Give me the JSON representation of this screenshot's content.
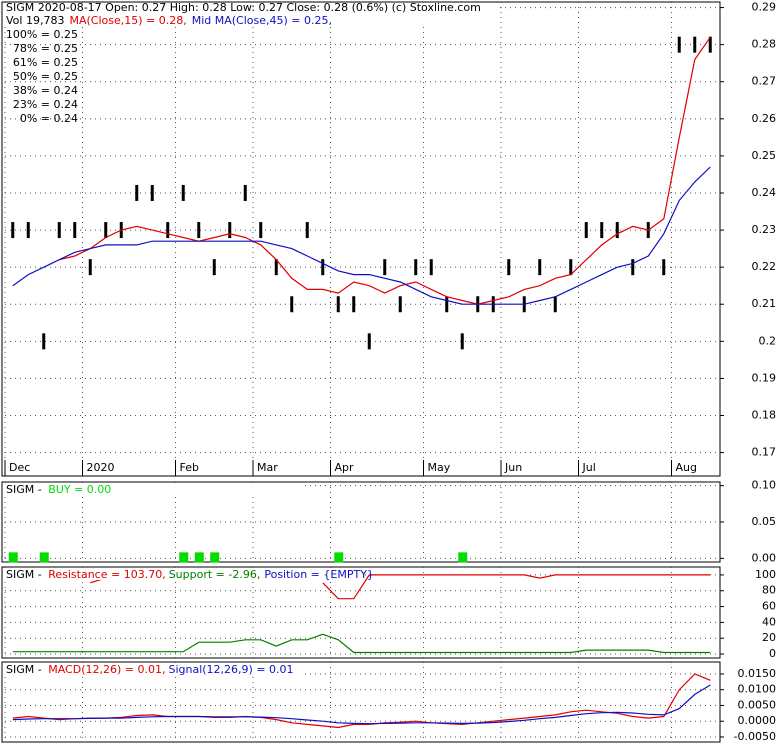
{
  "chart_data": [
    {
      "type": "ohlc",
      "title": "SIGM  2020-08-17 Open: 0.27  High: 0.28  Low: 0.27  Close: 0.28 (0.6%)  (c) Stoxline.com",
      "volume_label": "Vol 19,783",
      "categories": [
        "Dec",
        null,
        null,
        null,
        null,
        "2020",
        null,
        null,
        null,
        null,
        null,
        "Feb",
        null,
        null,
        null,
        null,
        "Mar",
        null,
        null,
        null,
        null,
        "Apr",
        null,
        null,
        null,
        null,
        null,
        "May",
        null,
        null,
        null,
        null,
        "Jun",
        null,
        null,
        null,
        null,
        "Jul",
        null,
        null,
        null,
        null,
        null,
        "Aug",
        null,
        null
      ],
      "values": [
        0.23,
        0.23,
        0.2,
        0.23,
        0.23,
        0.22,
        0.23,
        0.23,
        0.24,
        0.24,
        0.23,
        0.24,
        0.23,
        0.22,
        0.23,
        0.24,
        0.23,
        0.22,
        0.21,
        0.23,
        0.22,
        0.21,
        0.21,
        0.2,
        0.22,
        0.21,
        0.22,
        0.22,
        0.21,
        0.2,
        0.21,
        0.21,
        0.22,
        0.21,
        0.22,
        0.21,
        0.22,
        0.23,
        0.23,
        0.23,
        0.22,
        0.23,
        0.22,
        0.28,
        0.28,
        0.28
      ],
      "color": "#000000",
      "series": [
        {
          "name": "MA(Close,15) = 0.28,",
          "color": "#e00000",
          "values": [
            null,
            null,
            null,
            0.222,
            0.223,
            0.225,
            0.228,
            0.23,
            0.231,
            0.23,
            0.229,
            0.228,
            0.227,
            0.228,
            0.229,
            0.228,
            0.226,
            0.222,
            0.217,
            0.214,
            0.214,
            0.213,
            0.216,
            0.215,
            0.213,
            0.215,
            0.216,
            0.214,
            0.212,
            0.211,
            0.21,
            0.211,
            0.212,
            0.214,
            0.215,
            0.217,
            0.218,
            0.222,
            0.226,
            0.229,
            0.231,
            0.23,
            0.233,
            0.255,
            0.276,
            0.282
          ]
        },
        {
          "name": "Mid MA(Close,45) = 0.25,",
          "color": "#1010c0",
          "values": [
            0.215,
            0.218,
            0.22,
            0.222,
            0.224,
            0.225,
            0.226,
            0.226,
            0.226,
            0.227,
            0.227,
            0.227,
            0.227,
            0.227,
            0.227,
            0.227,
            0.227,
            0.226,
            0.225,
            0.223,
            0.221,
            0.219,
            0.218,
            0.218,
            0.217,
            0.216,
            0.214,
            0.212,
            0.211,
            0.21,
            0.21,
            0.21,
            0.21,
            0.21,
            0.211,
            0.212,
            0.214,
            0.216,
            0.218,
            0.22,
            0.221,
            0.223,
            0.229,
            0.238,
            0.243,
            0.247
          ]
        }
      ],
      "levels": [
        {
          "label": "100% = 0.25",
          "color": "#e00000"
        },
        {
          "label": "78% = 0.25",
          "color": "#d000d0"
        },
        {
          "label": "61% = 0.25",
          "color": "#8899bb"
        },
        {
          "label": "50% = 0.25",
          "color": "#1010c0"
        },
        {
          "label": "38% = 0.24",
          "color": "#8877aa"
        },
        {
          "label": "23% = 0.24",
          "color": "#d000d0"
        },
        {
          "label": "0% = 0.24",
          "color": "#008000"
        }
      ],
      "ylim": [
        0.168,
        0.2915
      ],
      "yticks": [
        0.17,
        0.18,
        0.19,
        0.2,
        0.21,
        0.22,
        0.23,
        0.24,
        0.25,
        0.26,
        0.27,
        0.28,
        0.29
      ],
      "grid": true
    },
    {
      "type": "scatter",
      "title": "SIGM - ",
      "categories": [
        "Dec",
        null,
        null,
        null,
        null,
        "2020",
        null,
        null,
        null,
        null,
        null,
        "Feb",
        null,
        null,
        null,
        null,
        "Mar",
        null,
        null,
        null,
        null,
        "Apr",
        null,
        null,
        null,
        null,
        null,
        "May",
        null,
        null,
        null,
        null,
        "Jun",
        null,
        null,
        null,
        null,
        "Jul",
        null,
        null,
        null,
        null,
        null,
        "Aug",
        null,
        null
      ],
      "series": [
        {
          "name": "BUY = 0.00",
          "color": "#00dd00",
          "values": [
            0,
            null,
            0,
            null,
            null,
            null,
            null,
            null,
            null,
            null,
            null,
            0,
            0,
            0,
            null,
            null,
            null,
            null,
            null,
            null,
            null,
            0,
            null,
            null,
            null,
            null,
            null,
            null,
            null,
            0,
            null,
            null,
            null,
            null,
            null,
            null,
            null,
            null,
            null,
            null,
            null,
            null,
            null,
            null,
            null,
            null
          ]
        }
      ],
      "ylim": [
        -0.005,
        0.105
      ],
      "yticks": [
        {
          "value": 0,
          "label": "0.00"
        },
        {
          "value": 0.05,
          "label": "0.05"
        },
        {
          "value": 0.1,
          "label": "0.10"
        }
      ],
      "grid": true
    },
    {
      "type": "line",
      "title": "SIGM - ",
      "position_label": "Position = {EMPTY}",
      "position_color": "#1010c0",
      "categories": [
        "Dec",
        null,
        null,
        null,
        null,
        "2020",
        null,
        null,
        null,
        null,
        null,
        "Feb",
        null,
        null,
        null,
        null,
        "Mar",
        null,
        null,
        null,
        null,
        "Apr",
        null,
        null,
        null,
        null,
        null,
        "May",
        null,
        null,
        null,
        null,
        "Jun",
        null,
        null,
        null,
        null,
        "Jul",
        null,
        null,
        null,
        null,
        null,
        "Aug",
        null,
        null
      ],
      "series": [
        {
          "name": "Resistance = 103.70,",
          "color": "#e00000",
          "values": [
            null,
            null,
            null,
            null,
            null,
            90,
            96,
            null,
            null,
            null,
            null,
            null,
            null,
            null,
            null,
            null,
            null,
            null,
            null,
            null,
            90,
            70,
            70,
            100,
            100,
            100,
            100,
            100,
            100,
            100,
            100,
            100,
            100,
            100,
            96,
            100,
            100,
            100,
            100,
            100,
            100,
            100,
            100,
            100,
            100,
            100
          ]
        },
        {
          "name": "Support = -2.96,",
          "color": "#008000",
          "values": [
            3,
            3,
            3,
            3,
            3,
            3,
            3,
            3,
            3,
            3,
            3,
            3,
            15,
            15,
            15,
            18,
            18,
            10,
            18,
            18,
            25,
            18,
            2,
            2,
            2,
            2,
            2,
            2,
            2,
            2,
            2,
            2,
            2,
            2,
            2,
            2,
            2,
            5,
            5,
            5,
            5,
            5,
            2,
            2,
            2,
            2
          ]
        }
      ],
      "ylim": [
        -5,
        110
      ],
      "yticks": [
        0,
        20,
        40,
        60,
        80,
        100
      ],
      "grid": true
    },
    {
      "type": "line",
      "title": "SIGM - ",
      "categories": [
        "Dec",
        null,
        null,
        null,
        null,
        "2020",
        null,
        null,
        null,
        null,
        null,
        "Feb",
        null,
        null,
        null,
        null,
        "Mar",
        null,
        null,
        null,
        null,
        "Apr",
        null,
        null,
        null,
        null,
        null,
        "May",
        null,
        null,
        null,
        null,
        "Jun",
        null,
        null,
        null,
        null,
        "Jul",
        null,
        null,
        null,
        null,
        null,
        "Aug",
        null,
        null
      ],
      "series": [
        {
          "name": "MACD(12,26) = 0.01,",
          "color": "#e00000",
          "values": [
            0.001,
            0.0015,
            0.001,
            0.0005,
            0.0008,
            0.001,
            0.001,
            0.0012,
            0.0018,
            0.002,
            0.0015,
            0.0015,
            0.0015,
            0.0012,
            0.0012,
            0.0015,
            0.0012,
            0.0005,
            -0.0005,
            -0.001,
            -0.0015,
            -0.002,
            -0.001,
            -0.001,
            -0.0005,
            -0.0003,
            0,
            -0.0005,
            -0.0008,
            -0.001,
            -0.0005,
            0,
            0.0005,
            0.001,
            0.0015,
            0.002,
            0.003,
            0.0035,
            0.003,
            0.0025,
            0.0015,
            0.001,
            0.0015,
            0.01,
            0.015,
            0.013
          ]
        },
        {
          "name": "Signal(12,26,9) = 0.01",
          "color": "#1010c0",
          "values": [
            0.0005,
            0.0007,
            0.0008,
            0.0008,
            0.0008,
            0.0009,
            0.001,
            0.001,
            0.0012,
            0.0014,
            0.0015,
            0.0015,
            0.0015,
            0.0014,
            0.0014,
            0.0014,
            0.0013,
            0.0011,
            0.0008,
            0.0004,
            0,
            -0.0005,
            -0.0007,
            -0.0008,
            -0.0007,
            -0.0006,
            -0.0005,
            -0.0005,
            -0.0006,
            -0.0007,
            -0.0006,
            -0.0004,
            -0.0001,
            0.0003,
            0.0008,
            0.0012,
            0.0018,
            0.0024,
            0.0027,
            0.0028,
            0.0026,
            0.0022,
            0.002,
            0.004,
            0.0085,
            0.0115
          ]
        }
      ],
      "ylim": [
        -0.0066,
        0.0188
      ],
      "yticks": [
        {
          "value": -0.005,
          "label": "-0.0050"
        },
        {
          "value": 0,
          "label": "0.0000"
        },
        {
          "value": 0.005,
          "label": "0.0050"
        },
        {
          "value": 0.01,
          "label": "0.0100"
        },
        {
          "value": 0.015,
          "label": "0.0150"
        }
      ],
      "grid": true
    }
  ]
}
